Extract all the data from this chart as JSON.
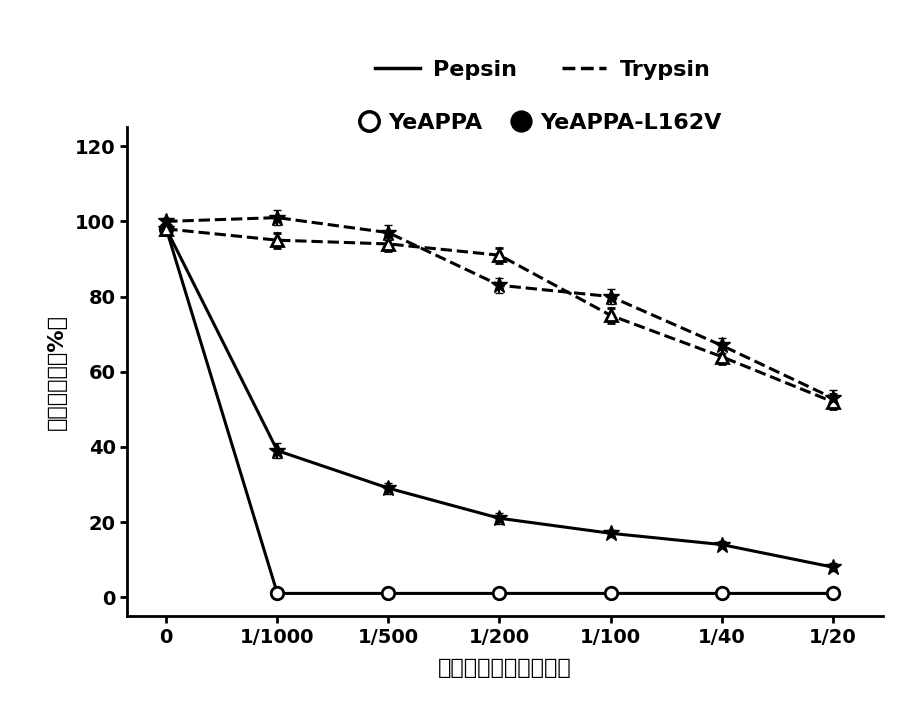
{
  "x_positions": [
    0,
    1,
    2,
    3,
    4,
    5,
    6
  ],
  "x_labels": [
    "0",
    "1/1000",
    "1/500",
    "1/200",
    "1/100",
    "1/40",
    "1/20"
  ],
  "pepsin_yeappa": [
    98,
    1,
    1,
    1,
    1,
    1,
    1
  ],
  "pepsin_yeappa_err": [
    1,
    1,
    0.5,
    0.5,
    0.5,
    0.5,
    0.5
  ],
  "pepsin_yeappa_l162v": [
    98,
    39,
    29,
    21,
    17,
    14,
    8
  ],
  "pepsin_yeappa_l162v_err": [
    1,
    2,
    1.5,
    1.5,
    1,
    1,
    1
  ],
  "trypsin_yeappa": [
    98,
    95,
    94,
    91,
    75,
    64,
    52
  ],
  "trypsin_yeappa_err": [
    1,
    2,
    2,
    2,
    2,
    2,
    2
  ],
  "trypsin_yeappa_l162v": [
    100,
    101,
    97,
    83,
    80,
    67,
    53
  ],
  "trypsin_yeappa_l162v_err": [
    1,
    2,
    2,
    2,
    2,
    2,
    2
  ],
  "ylabel": "相对酶活性（%）",
  "xlabel": "蛋白酶与植酸酶的比値",
  "ylim": [
    -5,
    125
  ],
  "yticks": [
    0,
    20,
    40,
    60,
    80,
    100,
    120
  ],
  "background_color": "#ffffff",
  "line_color": "#000000",
  "label_fontsize": 16,
  "tick_fontsize": 14,
  "legend_fontsize": 16
}
